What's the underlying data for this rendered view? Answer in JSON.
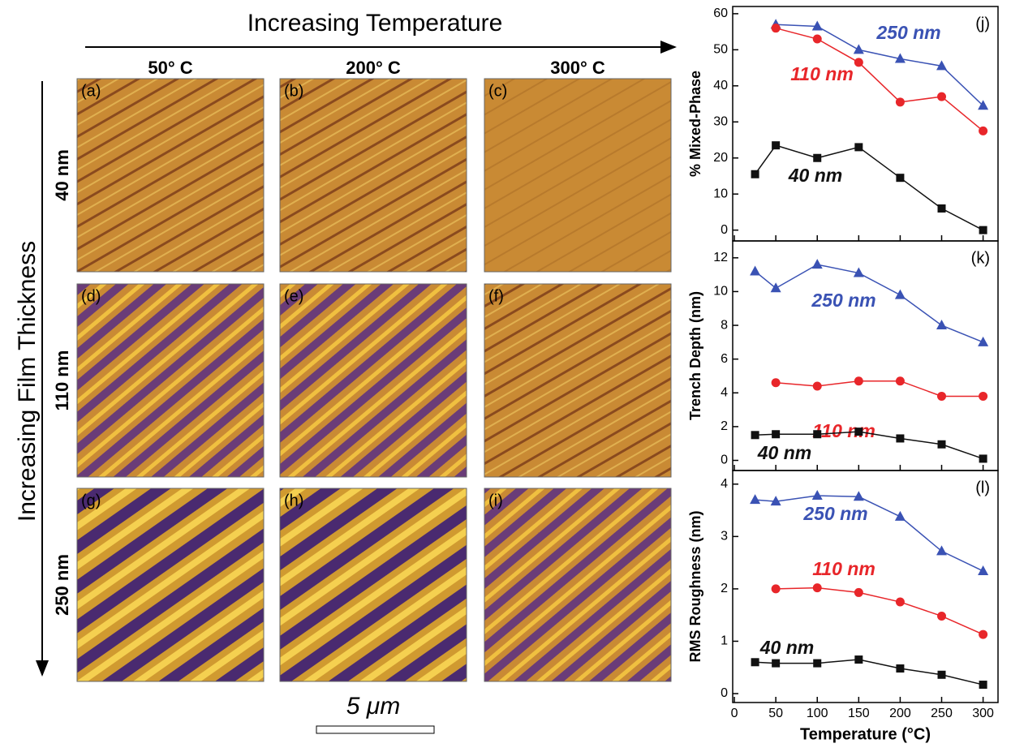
{
  "header": {
    "title": "Increasing Temperature",
    "row_axis": "Increasing Film Thickness"
  },
  "columns": [
    "50° C",
    "200° C",
    "300° C"
  ],
  "rows": [
    "40 nm",
    "110 nm",
    "250 nm"
  ],
  "panels": [
    "(a)",
    "(b)",
    "(c)",
    "(d)",
    "(e)",
    "(f)",
    "(g)",
    "(h)",
    "(i)"
  ],
  "scale_bar": "5 μm",
  "chart_data": [
    {
      "type": "line",
      "panel_label": "(j)",
      "ylabel": "% Mixed-Phase",
      "x": [
        25,
        50,
        100,
        150,
        200,
        250,
        300
      ],
      "xlim": [
        -2,
        318
      ],
      "xticks": [
        0,
        50,
        100,
        150,
        200,
        250,
        300
      ],
      "ylim": [
        -3,
        62
      ],
      "yticks": [
        0,
        10,
        20,
        30,
        40,
        50,
        60
      ],
      "series": [
        {
          "name": "250 nm",
          "color": "#3a52b4",
          "marker": "triangle",
          "values": [
            null,
            57,
            56.5,
            50,
            47.5,
            45.5,
            34.5
          ]
        },
        {
          "name": "110 nm",
          "color": "#e8262a",
          "marker": "circle",
          "values": [
            null,
            56,
            53,
            46.5,
            35.5,
            37,
            27.5
          ]
        },
        {
          "name": "40 nm",
          "color": "#111111",
          "marker": "square",
          "values": [
            15.5,
            23.5,
            20,
            23,
            14.5,
            6,
            0
          ]
        }
      ]
    },
    {
      "type": "line",
      "panel_label": "(k)",
      "ylabel": "Trench Depth (nm)",
      "x": [
        25,
        50,
        100,
        150,
        200,
        250,
        300
      ],
      "xlim": [
        -2,
        318
      ],
      "xticks": [
        0,
        50,
        100,
        150,
        200,
        250,
        300
      ],
      "ylim": [
        -0.6,
        13
      ],
      "yticks": [
        0,
        2,
        4,
        6,
        8,
        10,
        12
      ],
      "series": [
        {
          "name": "250 nm",
          "color": "#3a52b4",
          "marker": "triangle",
          "values": [
            11.2,
            10.2,
            11.6,
            11.1,
            9.8,
            8,
            7
          ]
        },
        {
          "name": "110 nm",
          "color": "#e8262a",
          "marker": "circle",
          "values": [
            null,
            4.6,
            4.4,
            4.7,
            4.7,
            3.8,
            3.8
          ]
        },
        {
          "name": "40 nm",
          "color": "#111111",
          "marker": "square",
          "values": [
            1.5,
            1.55,
            1.55,
            1.7,
            1.3,
            0.95,
            0.1
          ]
        }
      ]
    },
    {
      "type": "line",
      "panel_label": "(l)",
      "ylabel": "RMS Roughness (nm)",
      "xlabel": "Temperature (°C)",
      "x": [
        25,
        50,
        100,
        150,
        200,
        250,
        300
      ],
      "xlim": [
        -2,
        318
      ],
      "xticks": [
        0,
        50,
        100,
        150,
        200,
        250,
        300
      ],
      "ylim": [
        -0.17,
        4.26
      ],
      "yticks": [
        0,
        1,
        2,
        3,
        4
      ],
      "series": [
        {
          "name": "250 nm",
          "color": "#3a52b4",
          "marker": "triangle",
          "values": [
            3.7,
            3.67,
            3.78,
            3.76,
            3.38,
            2.72,
            2.34
          ]
        },
        {
          "name": "110 nm",
          "color": "#e8262a",
          "marker": "circle",
          "values": [
            null,
            2.0,
            2.02,
            1.93,
            1.75,
            1.48,
            1.13
          ]
        },
        {
          "name": "40 nm",
          "color": "#111111",
          "marker": "square",
          "values": [
            0.6,
            0.58,
            0.58,
            0.65,
            0.48,
            0.36,
            0.17
          ]
        }
      ]
    }
  ]
}
